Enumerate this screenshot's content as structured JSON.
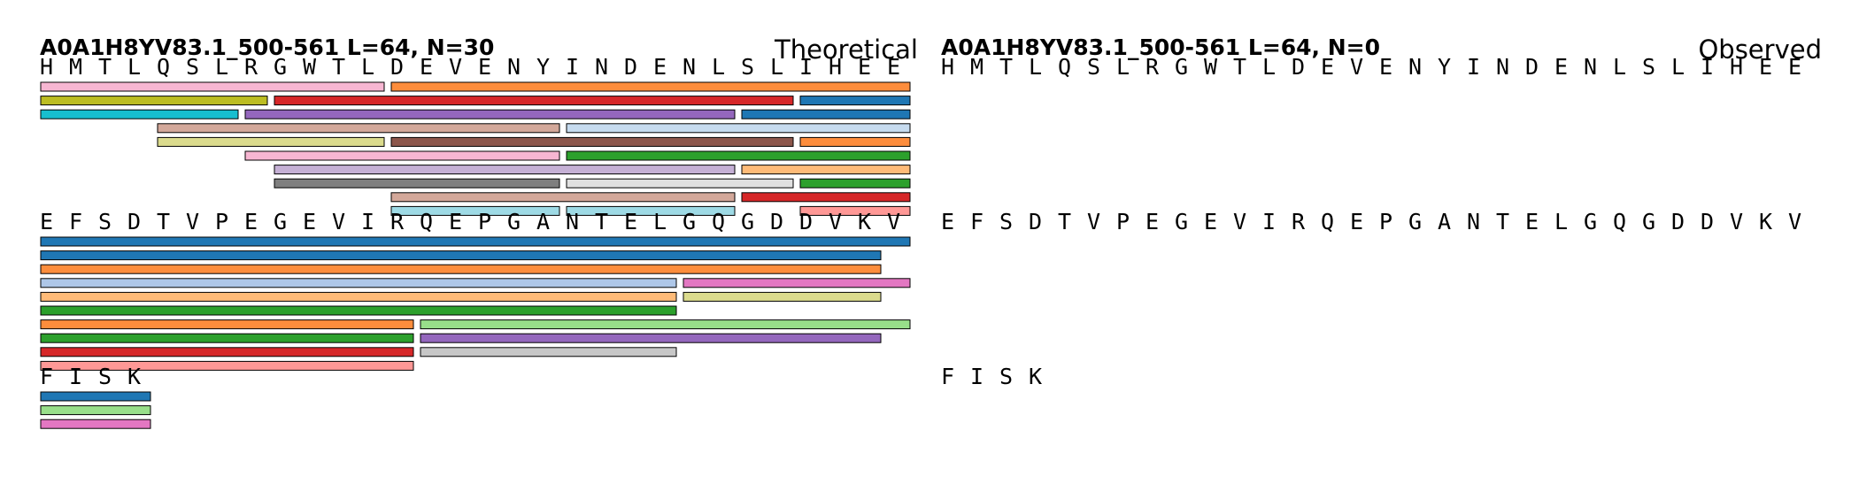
{
  "panels": [
    {
      "id": "theoretical",
      "title": "A0A1H8YV83.1_500-561  L=64, N=30",
      "side_label": "Theoretical",
      "blocks": [
        {
          "residues": [
            "H",
            "M",
            "T",
            "L",
            "Q",
            "S",
            "L",
            "R",
            "G",
            "W",
            "T",
            "L",
            "D",
            "E",
            "V",
            "E",
            "N",
            "Y",
            "I",
            "N",
            "D",
            "E",
            "N",
            "L",
            "S",
            "L",
            "I",
            "H",
            "E",
            "E"
          ],
          "peptides": [
            {
              "row": 0,
              "start": 0,
              "end": 11,
              "color": "#f7b6d2"
            },
            {
              "row": 0,
              "start": 12,
              "end": 29,
              "color": "#fd8d3c"
            },
            {
              "row": 1,
              "start": 0,
              "end": 7,
              "color": "#bcbd22"
            },
            {
              "row": 1,
              "start": 8,
              "end": 25,
              "color": "#d62728"
            },
            {
              "row": 1,
              "start": 26,
              "end": 29,
              "color": "#1f77b4"
            },
            {
              "row": 2,
              "start": 0,
              "end": 6,
              "color": "#17becf"
            },
            {
              "row": 2,
              "start": 7,
              "end": 23,
              "color": "#9467bd"
            },
            {
              "row": 2,
              "start": 24,
              "end": 29,
              "color": "#1f77b4"
            },
            {
              "row": 3,
              "start": 4,
              "end": 17,
              "color": "#d3a89a"
            },
            {
              "row": 3,
              "start": 18,
              "end": 29,
              "color": "#c6dbef"
            },
            {
              "row": 4,
              "start": 4,
              "end": 11,
              "color": "#dbdb8d"
            },
            {
              "row": 4,
              "start": 12,
              "end": 25,
              "color": "#8c564b"
            },
            {
              "row": 4,
              "start": 26,
              "end": 29,
              "color": "#fd8d3c"
            },
            {
              "row": 5,
              "start": 7,
              "end": 17,
              "color": "#f7b6d2"
            },
            {
              "row": 5,
              "start": 18,
              "end": 29,
              "color": "#2ca02c"
            },
            {
              "row": 6,
              "start": 8,
              "end": 23,
              "color": "#c5b0d5"
            },
            {
              "row": 6,
              "start": 24,
              "end": 29,
              "color": "#ffbb78"
            },
            {
              "row": 7,
              "start": 8,
              "end": 17,
              "color": "#7f7f7f"
            },
            {
              "row": 7,
              "start": 18,
              "end": 25,
              "color": "#e0e0e0"
            },
            {
              "row": 7,
              "start": 26,
              "end": 29,
              "color": "#2ca02c"
            },
            {
              "row": 8,
              "start": 12,
              "end": 23,
              "color": "#d3a89a"
            },
            {
              "row": 8,
              "start": 24,
              "end": 29,
              "color": "#d62728"
            },
            {
              "row": 9,
              "start": 12,
              "end": 17,
              "color": "#9edae5"
            },
            {
              "row": 9,
              "start": 18,
              "end": 23,
              "color": "#9edae5"
            },
            {
              "row": 9,
              "start": 26,
              "end": 29,
              "color": "#ff9896"
            }
          ]
        },
        {
          "residues": [
            "E",
            "F",
            "S",
            "D",
            "T",
            "V",
            "P",
            "E",
            "G",
            "E",
            "V",
            "I",
            "R",
            "Q",
            "E",
            "P",
            "G",
            "A",
            "N",
            "T",
            "E",
            "L",
            "G",
            "Q",
            "G",
            "D",
            "D",
            "V",
            "K",
            "V"
          ],
          "peptides": [
            {
              "row": 0,
              "start": 0,
              "end": 29,
              "color": "#1f77b4"
            },
            {
              "row": 1,
              "start": 0,
              "end": 28,
              "color": "#1f77b4"
            },
            {
              "row": 2,
              "start": 0,
              "end": 28,
              "color": "#fd8d3c"
            },
            {
              "row": 3,
              "start": 0,
              "end": 21,
              "color": "#aec7e8"
            },
            {
              "row": 3,
              "start": 22,
              "end": 29,
              "color": "#e377c2"
            },
            {
              "row": 4,
              "start": 0,
              "end": 21,
              "color": "#ffbb78"
            },
            {
              "row": 4,
              "start": 22,
              "end": 28,
              "color": "#dbdb8d"
            },
            {
              "row": 5,
              "start": 0,
              "end": 21,
              "color": "#2ca02c"
            },
            {
              "row": 6,
              "start": 0,
              "end": 12,
              "color": "#fd8d3c"
            },
            {
              "row": 6,
              "start": 13,
              "end": 29,
              "color": "#98df8a"
            },
            {
              "row": 7,
              "start": 0,
              "end": 12,
              "color": "#2ca02c"
            },
            {
              "row": 7,
              "start": 13,
              "end": 28,
              "color": "#9467bd"
            },
            {
              "row": 8,
              "start": 0,
              "end": 12,
              "color": "#d62728"
            },
            {
              "row": 8,
              "start": 13,
              "end": 21,
              "color": "#c7c7c7"
            },
            {
              "row": 9,
              "start": 0,
              "end": 12,
              "color": "#ff9896"
            }
          ]
        },
        {
          "residues": [
            "F",
            "I",
            "S",
            "K"
          ],
          "peptides": [
            {
              "row": 0,
              "start": 0,
              "end": 3,
              "color": "#1f77b4"
            },
            {
              "row": 1,
              "start": 0,
              "end": 3,
              "color": "#98df8a"
            },
            {
              "row": 2,
              "start": 0,
              "end": 3,
              "color": "#e377c2"
            }
          ]
        }
      ]
    },
    {
      "id": "observed",
      "title": "A0A1H8YV83.1_500-561  L=64, N=0",
      "side_label": "Observed",
      "blocks": [
        {
          "residues": [
            "H",
            "M",
            "T",
            "L",
            "Q",
            "S",
            "L",
            "R",
            "G",
            "W",
            "T",
            "L",
            "D",
            "E",
            "V",
            "E",
            "N",
            "Y",
            "I",
            "N",
            "D",
            "E",
            "N",
            "L",
            "S",
            "L",
            "I",
            "H",
            "E",
            "E"
          ],
          "peptides": []
        },
        {
          "residues": [
            "E",
            "F",
            "S",
            "D",
            "T",
            "V",
            "P",
            "E",
            "G",
            "E",
            "V",
            "I",
            "R",
            "Q",
            "E",
            "P",
            "G",
            "A",
            "N",
            "T",
            "E",
            "L",
            "G",
            "Q",
            "G",
            "D",
            "D",
            "V",
            "K",
            "V"
          ],
          "peptides": []
        },
        {
          "residues": [
            "F",
            "I",
            "S",
            "K"
          ],
          "peptides": []
        }
      ]
    }
  ]
}
